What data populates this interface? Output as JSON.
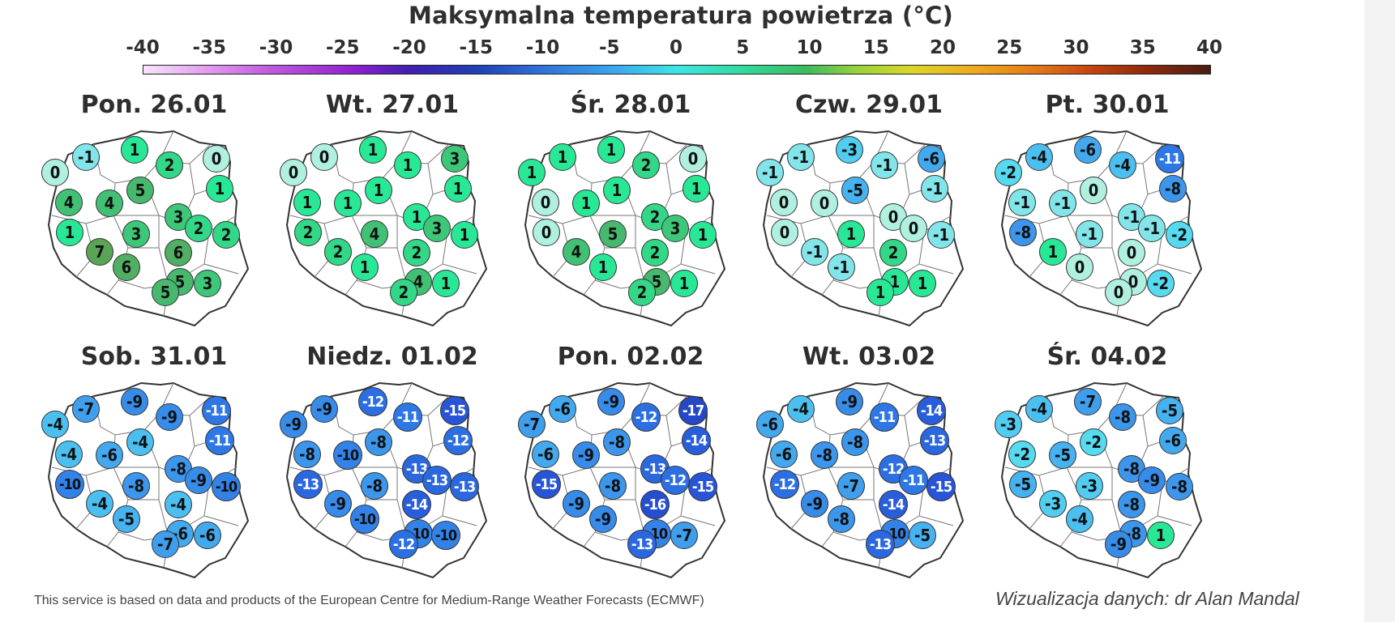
{
  "title": "Maksymalna temperatura powietrza (°C)",
  "scale": {
    "ticks": [
      "-40",
      "-35",
      "-30",
      "-25",
      "-20",
      "-15",
      "-10",
      "-5",
      "0",
      "5",
      "10",
      "15",
      "20",
      "25",
      "30",
      "35",
      "40"
    ],
    "min": -40,
    "max": 40
  },
  "colors": {
    "background": "#ffffff",
    "map_fill": "#ffffff",
    "map_border": "#333333"
  },
  "days": [
    {
      "label": "Pon. 26.01",
      "values": [
        0,
        -1,
        1,
        0,
        4,
        4,
        2,
        1,
        1,
        5,
        3,
        2,
        7,
        3,
        2,
        6,
        6,
        5,
        5,
        3
      ]
    },
    {
      "label": "Wt. 27.01",
      "values": [
        0,
        0,
        1,
        3,
        1,
        1,
        1,
        1,
        2,
        1,
        1,
        1,
        2,
        4,
        3,
        2,
        1,
        4,
        2,
        1
      ]
    },
    {
      "label": "Śr. 28.01",
      "values": [
        1,
        1,
        1,
        0,
        0,
        1,
        2,
        1,
        0,
        1,
        2,
        1,
        4,
        5,
        3,
        2,
        1,
        5,
        2,
        1
      ]
    },
    {
      "label": "Czw. 29.01",
      "values": [
        -1,
        -1,
        -3,
        -6,
        0,
        0,
        -1,
        -1,
        0,
        -5,
        0,
        -1,
        -1,
        1,
        0,
        2,
        -1,
        1,
        1,
        1
      ]
    },
    {
      "label": "Pt. 30.01",
      "values": [
        -2,
        -4,
        -6,
        -11,
        -1,
        -1,
        -4,
        -8,
        -8,
        0,
        -1,
        -2,
        1,
        -1,
        -1,
        0,
        0,
        0,
        0,
        -2
      ]
    },
    {
      "label": "Sob. 31.01",
      "values": [
        -4,
        -7,
        -9,
        -11,
        -4,
        -6,
        -9,
        -11,
        -10,
        -4,
        -8,
        -10,
        -4,
        -8,
        -9,
        -4,
        -5,
        -6,
        -7,
        -6
      ]
    },
    {
      "label": "Niedz. 01.02",
      "values": [
        -9,
        -9,
        -12,
        -15,
        -8,
        -10,
        -11,
        -12,
        -13,
        -8,
        -13,
        -13,
        -9,
        -8,
        -13,
        -14,
        -10,
        -10,
        -12,
        -10
      ]
    },
    {
      "label": "Pon. 02.02",
      "values": [
        -7,
        -6,
        -9,
        -17,
        -6,
        -9,
        -12,
        -14,
        -15,
        -8,
        -13,
        -15,
        -9,
        -8,
        -12,
        -16,
        -9,
        -10,
        -13,
        -7
      ]
    },
    {
      "label": "Wt. 03.02",
      "values": [
        -6,
        -4,
        -9,
        -14,
        -6,
        -8,
        -11,
        -13,
        -12,
        -8,
        -12,
        -15,
        -9,
        -7,
        -11,
        -14,
        -8,
        -10,
        -13,
        -5
      ]
    },
    {
      "label": "Śr. 04.02",
      "values": [
        -3,
        -4,
        -7,
        -5,
        -2,
        -5,
        -8,
        -6,
        -5,
        -2,
        -8,
        -8,
        -3,
        -3,
        -9,
        -8,
        -4,
        -8,
        -9,
        1
      ]
    }
  ],
  "footer": {
    "source": "This service is based on data and products of the European Centre for Medium-Range Weather Forecasts (ECMWF)",
    "credit": "Wizualizacja danych: dr Alan Mandal"
  }
}
